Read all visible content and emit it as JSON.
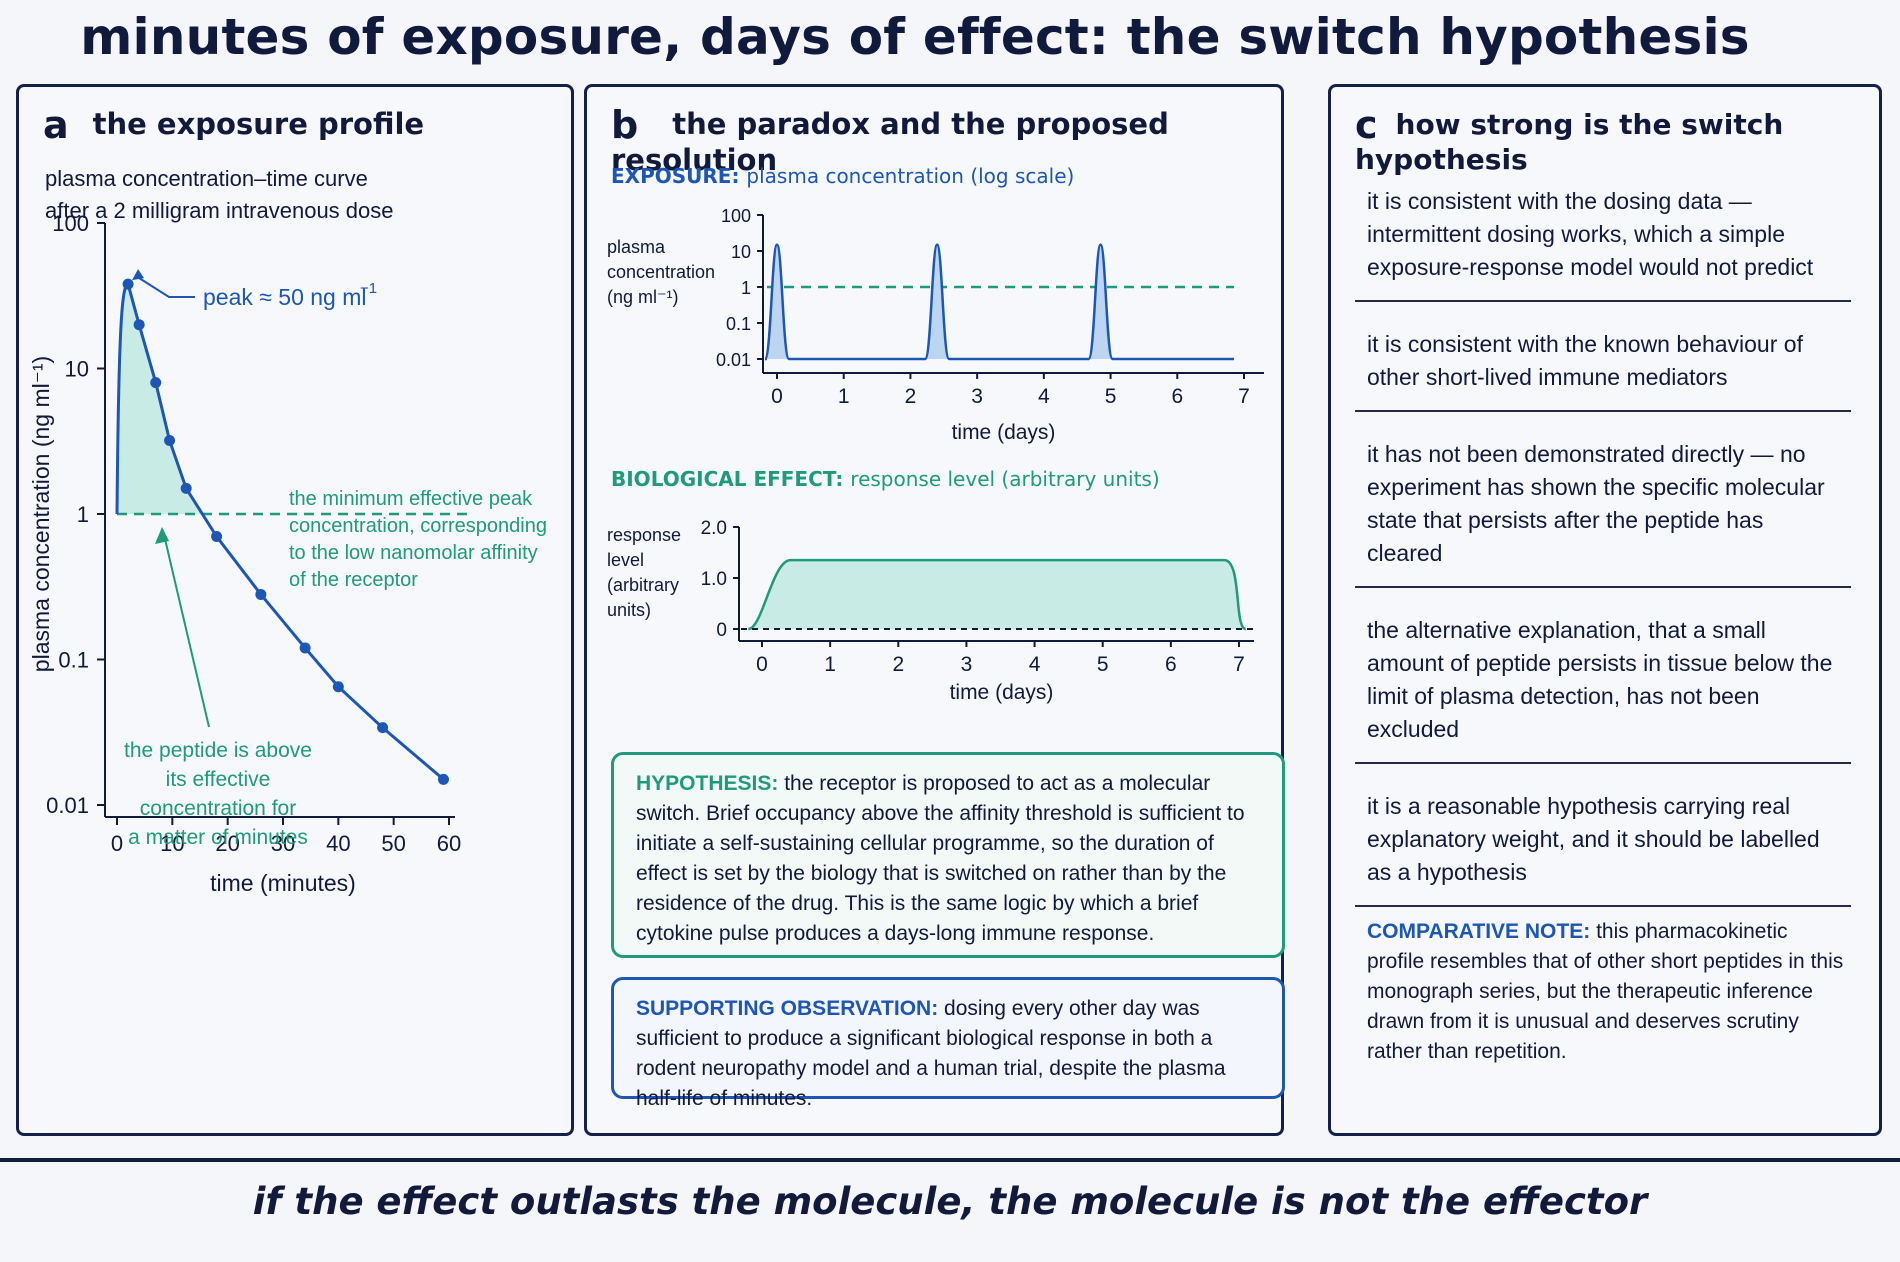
{
  "title": "minutes of exposure, days of effect: the switch hypothesis",
  "footer": "if the effect outlasts the molecule, the molecule is not the effector",
  "colors": {
    "blue": "#1d56b5",
    "green": "#1f9a7a",
    "fill": "#bfe9e1",
    "dark": "#111a3a"
  },
  "panel_a": {
    "letter": "a",
    "title": "the exposure profile",
    "desc_line1": "plasma concentration–time curve",
    "desc_line2": "after a 2 milligram intravenous dose",
    "peak_label": "peak ≈ 50 ng ml",
    "peak_sup": "−1",
    "threshold_note": [
      "the minimum effective peak",
      "concentration, corresponding",
      "to the low nanomolar affinity",
      "of the receptor"
    ],
    "above_note": [
      "the peptide is above",
      "its effective",
      "concentration for",
      "a matter of minutes"
    ]
  },
  "panel_b": {
    "letter": "b",
    "title": "the paradox and the proposed resolution",
    "exposure_label": "EXPOSURE:",
    "exposure_text": "plasma concentration (log scale)",
    "effect_label": "BIOLOGICAL EFFECT:",
    "effect_text": "response level (arbitrary units)",
    "hypothesis_label": "HYPOTHESIS:",
    "hypothesis_text": "the receptor is proposed to act as a molecular switch. Brief occupancy above the affinity threshold is sufficient to initiate a self-sustaining cellular programme, so the duration of effect is set by the biology that is switched on rather than by the residence of the drug. This is the same logic by which a brief cytokine pulse produces a days-long immune response.",
    "support_label": "SUPPORTING OBSERVATION:",
    "support_text": "dosing every other day was sufficient to produce a significant biological response in both a rodent neuropathy model and a human trial, despite the plasma half-life of minutes."
  },
  "panel_c": {
    "letter": "c",
    "title": "how strong is the switch hypothesis",
    "items": [
      "it is consistent with the dosing data — intermittent dosing works, which a simple exposure-response model would not predict",
      "it is consistent with the known behaviour of other short-lived immune mediators",
      "it has not been demonstrated directly — no experiment has shown the specific molecular state that persists after the peptide has cleared",
      "the alternative explanation, that a small amount of peptide persists in tissue below the limit of plasma detection, has not been excluded",
      "it is a reasonable hypothesis carrying real explanatory weight, and it should be labelled as a hypothesis"
    ],
    "note_label": "COMPARATIVE NOTE:",
    "note_text": "this pharmacokinetic profile resembles that of other short peptides in this monograph series, but the therapeutic inference drawn from it is unusual and deserves scrutiny rather than repetition."
  },
  "chart_data": [
    {
      "id": "a",
      "type": "line",
      "xlabel": "time (minutes)",
      "ylabel": "plasma concentration (ng ml⁻¹)",
      "xlim": [
        0,
        60
      ],
      "xticks": [
        0,
        10,
        20,
        30,
        40,
        50,
        60
      ],
      "ylim": [
        0.01,
        100
      ],
      "yscale": "log",
      "yticks": [
        100,
        10,
        1,
        0.1,
        0.01
      ],
      "ytick_labels": [
        "100",
        "10",
        "1",
        "0.1",
        "0.01"
      ],
      "threshold": 1,
      "x": [
        2,
        4,
        7,
        9.5,
        12.5,
        18,
        26,
        34,
        40,
        48,
        59
      ],
      "y": [
        38,
        20,
        8,
        3.2,
        1.5,
        0.7,
        0.28,
        0.12,
        0.065,
        0.034,
        0.015
      ]
    },
    {
      "id": "b-exposure",
      "type": "line",
      "xlabel": "time (days)",
      "ylabel": [
        "plasma",
        "concentration",
        "(ng ml⁻¹)"
      ],
      "xlim": [
        0,
        7
      ],
      "xticks": [
        0,
        1,
        2,
        3,
        4,
        5,
        6,
        7
      ],
      "yscale": "log",
      "ylim": [
        0.01,
        100
      ],
      "yticks": [
        100,
        10,
        1,
        0.1,
        0.01
      ],
      "ytick_labels": [
        "100",
        "10",
        "1",
        "0.1",
        "0.01"
      ],
      "threshold": 1,
      "peak_days": [
        0,
        2.4,
        4.85
      ],
      "peak_value": 15,
      "baseline": 0.01
    },
    {
      "id": "b-effect",
      "type": "area",
      "xlabel": "time (days)",
      "ylabel": [
        "response",
        "level",
        "(arbitrary",
        "units)"
      ],
      "xlim": [
        0,
        7
      ],
      "xticks": [
        0,
        1,
        2,
        3,
        4,
        5,
        6,
        7
      ],
      "ylim": [
        0,
        2
      ],
      "yticks": [
        2,
        1,
        0
      ],
      "ytick_labels": [
        "2.0",
        "1.0",
        "0"
      ],
      "plateau": 1.35,
      "rise_day": 0.3,
      "fall_day": 6.9
    }
  ]
}
